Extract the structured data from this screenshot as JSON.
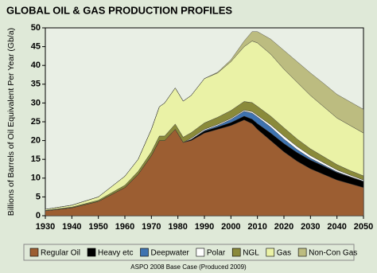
{
  "chart_data": {
    "type": "stacked_area",
    "title": "GLOBAL OIL & GAS PRODUCTION PROFILES",
    "y_label": "Billions of Barrels of Oil Equivalent Per Year (Gb/a)",
    "note": "ASPO 2008 Base Case (Produced 2009)",
    "x": [
      1930,
      1940,
      1950,
      1960,
      1965,
      1970,
      1973,
      1975,
      1979,
      1982,
      1985,
      1990,
      1995,
      2000,
      2005,
      2008,
      2010,
      2015,
      2020,
      2025,
      2030,
      2035,
      2040,
      2045,
      2050
    ],
    "series": [
      {
        "name": "Regular Oil",
        "color": "#9c5e32",
        "values": [
          1.3,
          2.1,
          3.8,
          7.5,
          11,
          16,
          20,
          20,
          23,
          19.5,
          20,
          22,
          23,
          24,
          25.5,
          24.5,
          23,
          20,
          17,
          14.5,
          12.5,
          11,
          9.5,
          8.5,
          7.5
        ]
      },
      {
        "name": "Heavy etc",
        "color": "#000000",
        "values": [
          0,
          0,
          0,
          0,
          0,
          0,
          0,
          0,
          0,
          0,
          0.3,
          0.5,
          0.6,
          0.8,
          1,
          1.2,
          1.5,
          2,
          2.2,
          2.3,
          2.3,
          2.2,
          2,
          1.8,
          1.6
        ]
      },
      {
        "name": "Deepwater",
        "color": "#3f73b0",
        "values": [
          0,
          0,
          0,
          0,
          0,
          0,
          0,
          0,
          0,
          0,
          0,
          0.2,
          0.4,
          0.8,
          1.3,
          1.6,
          1.8,
          1.6,
          1.2,
          0.8,
          0.5,
          0.3,
          0.2,
          0.1,
          0.1
        ]
      },
      {
        "name": "Polar",
        "color": "#ffffff",
        "values": [
          0,
          0,
          0,
          0,
          0,
          0,
          0,
          0,
          0,
          0,
          0.3,
          0.3,
          0.3,
          0.3,
          0.3,
          0.4,
          0.4,
          0.6,
          0.8,
          0.8,
          0.7,
          0.6,
          0.5,
          0.4,
          0.3
        ]
      },
      {
        "name": "NGL",
        "color": "#8a8a3a",
        "values": [
          0.1,
          0.2,
          0.3,
          0.6,
          0.8,
          1,
          1.2,
          1.2,
          1.4,
          1.4,
          1.5,
          1.7,
          1.9,
          2.1,
          2.3,
          2.4,
          2.4,
          2.3,
          2.2,
          2,
          1.8,
          1.6,
          1.4,
          1.2,
          1.1
        ]
      },
      {
        "name": "Gas",
        "color": "#eaf2a6",
        "values": [
          0.3,
          0.5,
          0.9,
          2.4,
          3.2,
          6,
          7.8,
          8.8,
          9.6,
          9.6,
          9.9,
          11.8,
          11.8,
          13,
          14.6,
          16.4,
          16.9,
          16.5,
          15.6,
          15.1,
          14.2,
          13.3,
          12.4,
          12,
          11.4
        ]
      },
      {
        "name": "Non-Con Gas",
        "color": "#bcbc80",
        "values": [
          0,
          0,
          0,
          0,
          0,
          0,
          0,
          0,
          0,
          0,
          0,
          0,
          0.2,
          0.5,
          1.5,
          2.5,
          3,
          4,
          5,
          5.5,
          6,
          6.2,
          6.3,
          6.3,
          6.3
        ]
      }
    ],
    "xlim": [
      1930,
      2050
    ],
    "xticks": [
      1930,
      1940,
      1950,
      1960,
      1970,
      1980,
      1990,
      2000,
      2010,
      2020,
      2030,
      2040,
      2050
    ],
    "ylim": [
      0,
      50
    ],
    "yticks": [
      0,
      5,
      10,
      15,
      20,
      25,
      30,
      35,
      40,
      45,
      50
    ],
    "grid": false
  }
}
